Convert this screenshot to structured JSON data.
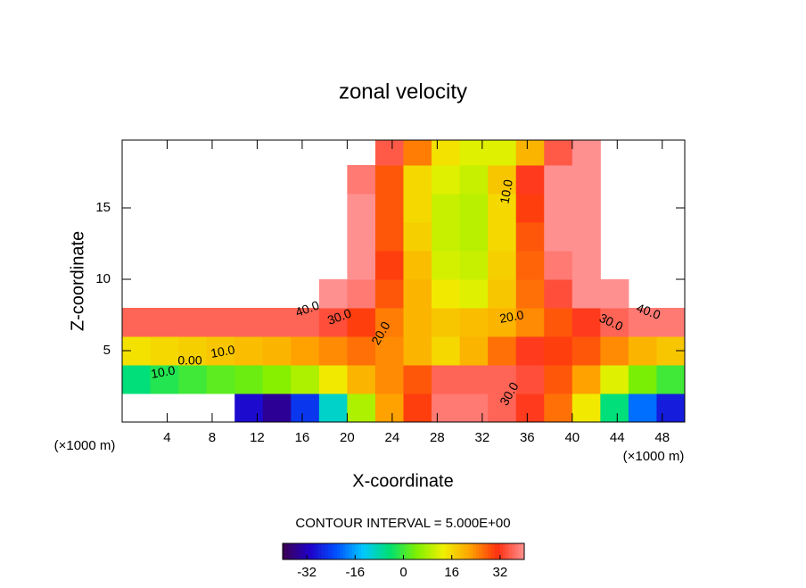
{
  "chart_data": {
    "type": "contour",
    "title": "zonal velocity",
    "xlabel": "X-coordinate",
    "ylabel": "Z-coordinate",
    "x_unit": "(×1000 m)",
    "y_unit": "(×1000 m)",
    "xlim": [
      0,
      50
    ],
    "ylim": [
      0,
      19.75
    ],
    "xticks": [
      4,
      8,
      12,
      16,
      20,
      24,
      28,
      32,
      36,
      40,
      44,
      48
    ],
    "yticks": [
      5,
      10,
      15
    ],
    "x": [
      1.25,
      3.75,
      6.25,
      8.75,
      11.25,
      13.75,
      16.25,
      18.75,
      21.25,
      23.75,
      26.25,
      28.75,
      31.25,
      33.75,
      36.25,
      38.75,
      41.25,
      43.75,
      46.25,
      48.75
    ],
    "y": [
      1,
      3,
      5,
      7,
      9,
      11,
      13,
      15,
      17,
      19
    ],
    "values": [
      [
        null,
        null,
        null,
        null,
        -30,
        -35,
        -25,
        -10,
        8,
        22,
        30,
        38,
        38,
        36,
        32,
        26,
        14,
        -5,
        -20,
        -28
      ],
      [
        -5,
        -2,
        0,
        2,
        3,
        5,
        8,
        14,
        20,
        24,
        28,
        36,
        36,
        36,
        34,
        28,
        22,
        12,
        4,
        0
      ],
      [
        15,
        16,
        17,
        18,
        19,
        20,
        22,
        24,
        26,
        24,
        20,
        16,
        20,
        26,
        32,
        30,
        28,
        24,
        20,
        18
      ],
      [
        36,
        36,
        36,
        36,
        36,
        36,
        36,
        34,
        30,
        25,
        20,
        18,
        19,
        20,
        24,
        28,
        32,
        36,
        38,
        38
      ],
      [
        null,
        null,
        null,
        null,
        null,
        null,
        null,
        44,
        38,
        28,
        20,
        14,
        12,
        18,
        26,
        34,
        40,
        44,
        null,
        null
      ],
      [
        null,
        null,
        null,
        null,
        null,
        null,
        null,
        null,
        41,
        30,
        19,
        11,
        10,
        17,
        27,
        38,
        43,
        null,
        null,
        null
      ],
      [
        null,
        null,
        null,
        null,
        null,
        null,
        null,
        null,
        40,
        28,
        17,
        10,
        9,
        16,
        28,
        40,
        44,
        null,
        null,
        null
      ],
      [
        null,
        null,
        null,
        null,
        null,
        null,
        null,
        null,
        40,
        28,
        16,
        10,
        9,
        16,
        30,
        42,
        42,
        null,
        null,
        null
      ],
      [
        null,
        null,
        null,
        null,
        null,
        null,
        null,
        null,
        38,
        28,
        16,
        12,
        10,
        18,
        32,
        42,
        40,
        null,
        null,
        null
      ],
      [
        null,
        null,
        null,
        null,
        null,
        null,
        null,
        null,
        null,
        35,
        25,
        15,
        12,
        12,
        20,
        35,
        40,
        null,
        null,
        null
      ]
    ],
    "contour_labels": [
      "40.0",
      "30.0",
      "20.0",
      "10.0",
      "0.00",
      "10.0",
      "10.0",
      "20.0",
      "30.0",
      "30.0",
      "40.0"
    ],
    "contour_interval": "CONTOUR INTERVAL = 5.000E+00",
    "clim": [
      -40,
      40
    ],
    "colormap": [
      "#3c0050",
      "#2000c8",
      "#0050ff",
      "#00c8ff",
      "#00e070",
      "#80f000",
      "#f0f000",
      "#ffa000",
      "#ff3010",
      "#ff9090"
    ],
    "colorbar_ticks": [
      -32,
      -16,
      0,
      16,
      32
    ]
  }
}
